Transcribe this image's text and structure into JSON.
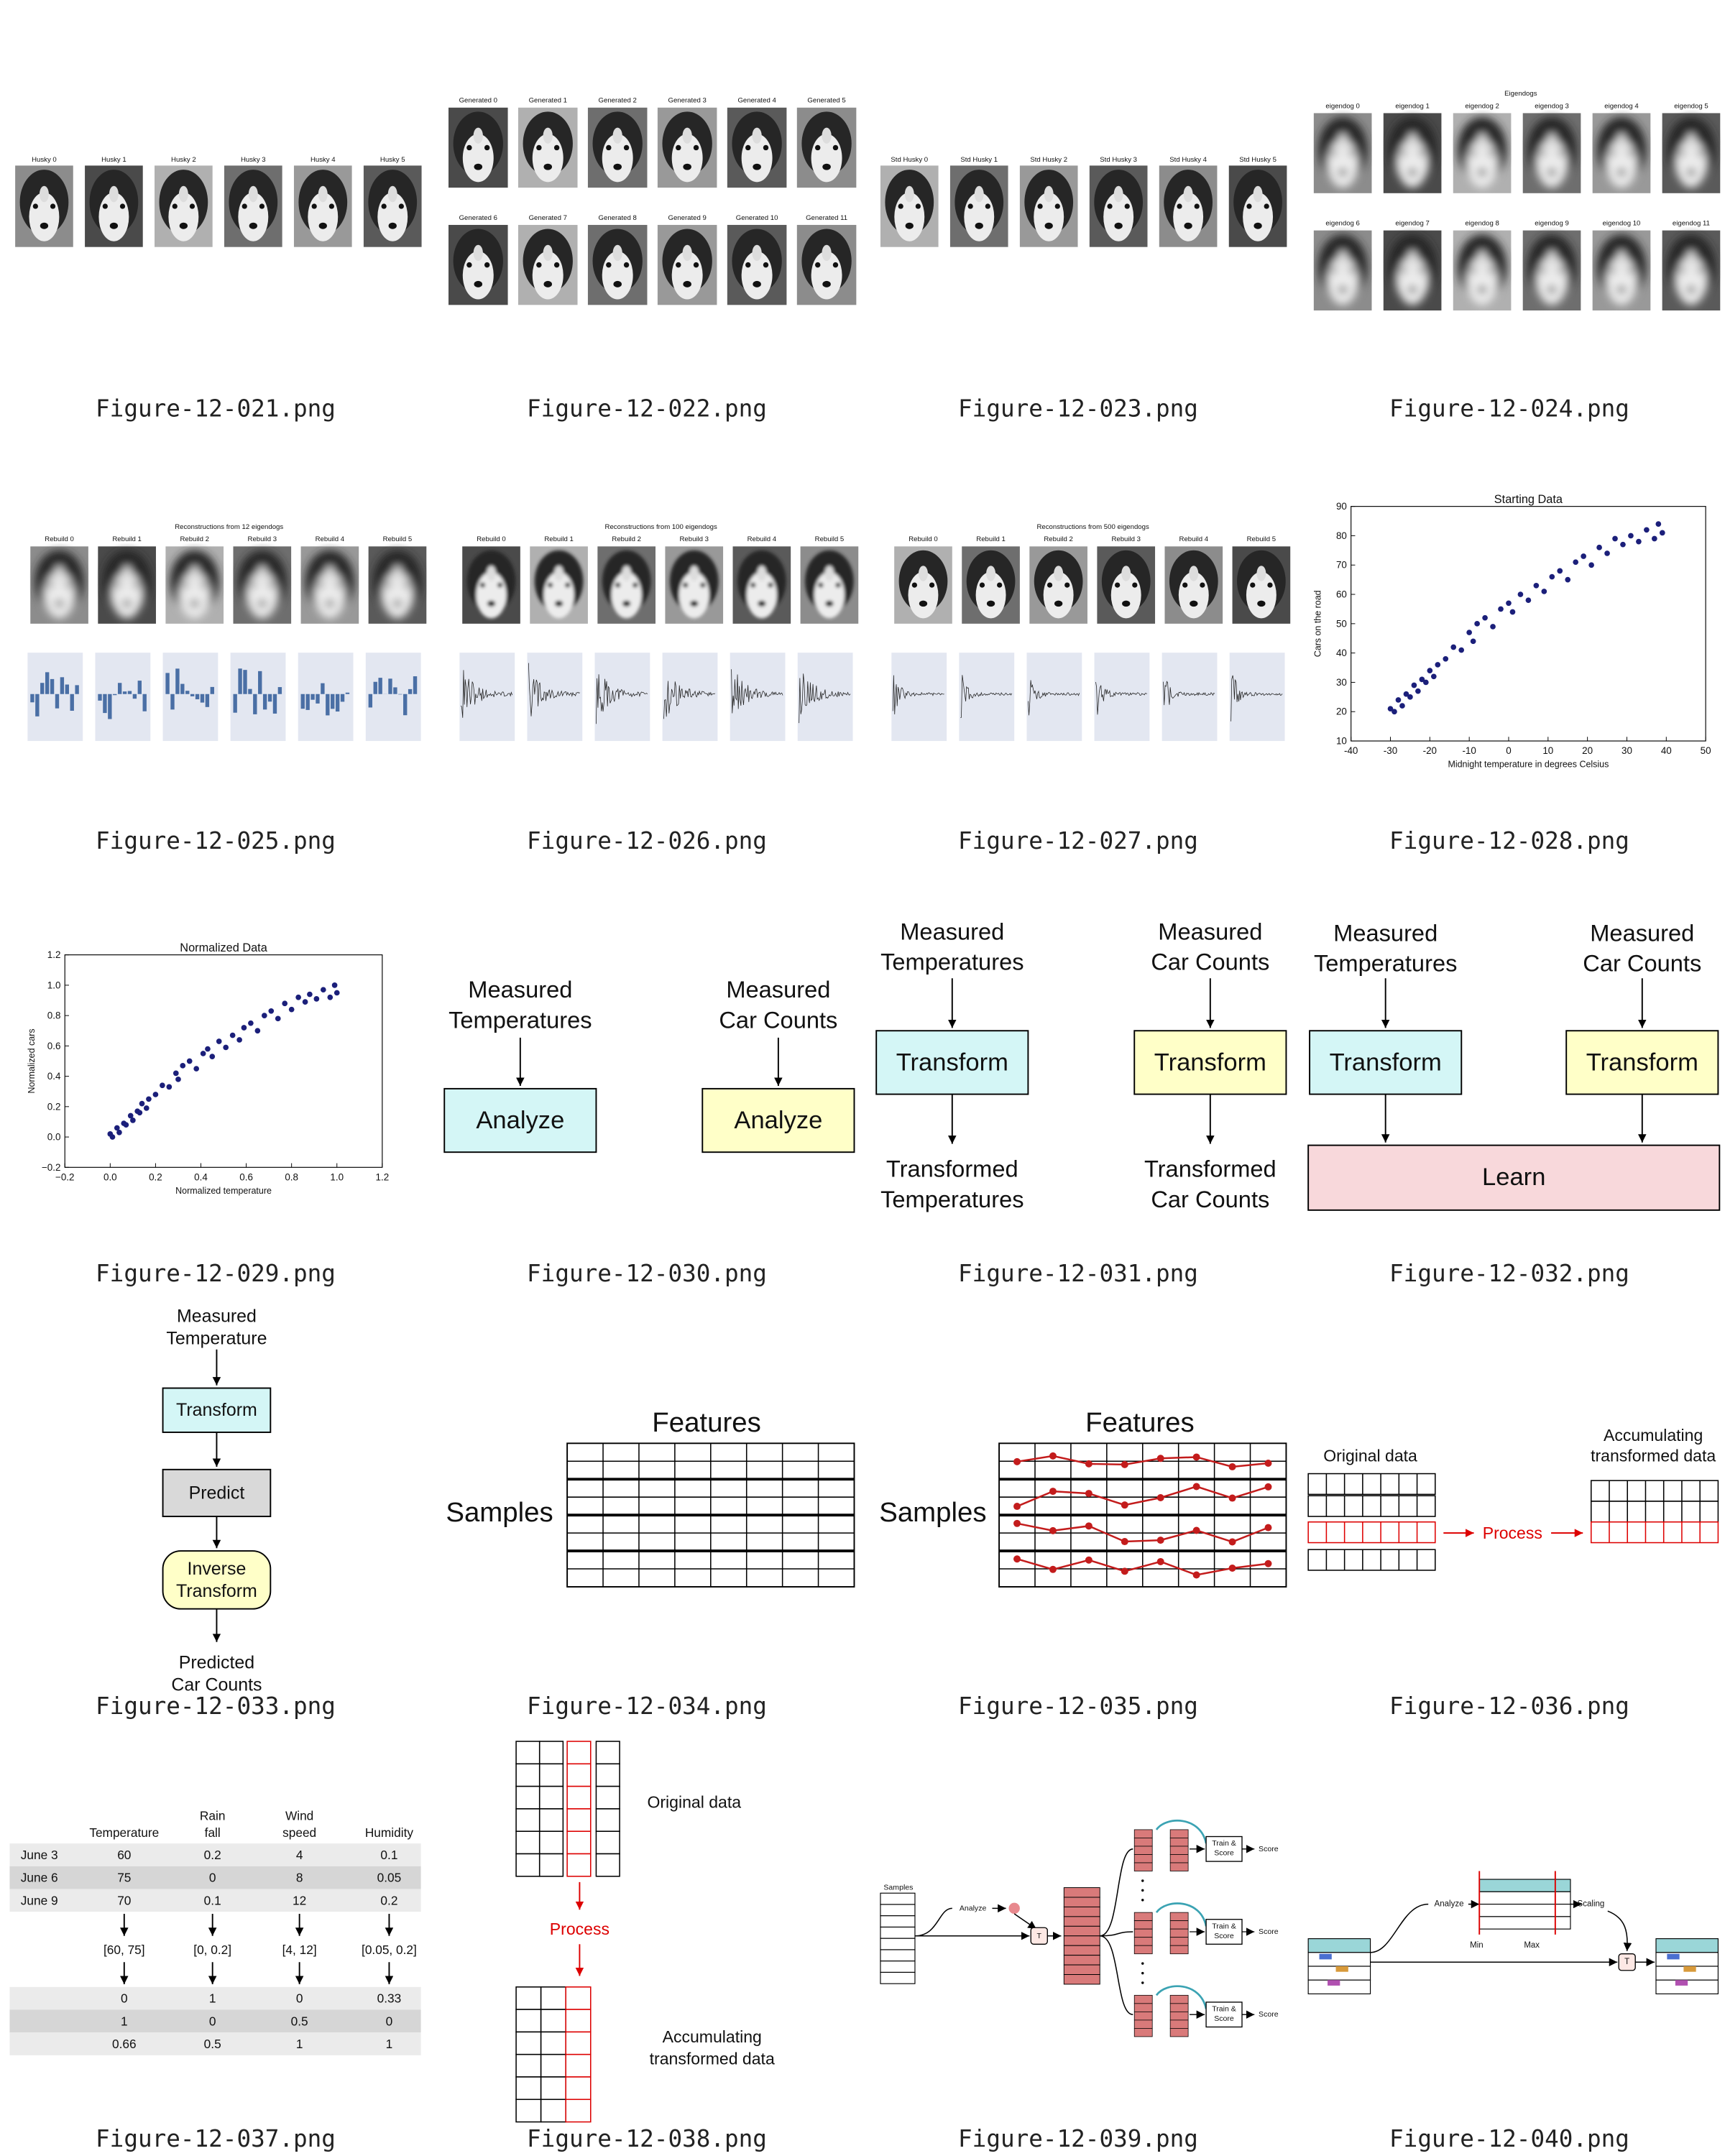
{
  "files": [
    {
      "caption": "Figure-12-021.png",
      "labels": [
        "Husky 0",
        "Husky 1",
        "Husky 2",
        "Husky 3",
        "Husky 4",
        "Husky 5"
      ]
    },
    {
      "caption": "Figure-12-022.png",
      "labels": [
        "Generated 0",
        "Generated 1",
        "Generated 2",
        "Generated 3",
        "Generated 4",
        "Generated 5",
        "Generated 6",
        "Generated 7",
        "Generated 8",
        "Generated 9",
        "Generated 10",
        "Generated 11"
      ]
    },
    {
      "caption": "Figure-12-023.png",
      "labels": [
        "Std Husky 0",
        "Std Husky 1",
        "Std Husky 2",
        "Std Husky 3",
        "Std Husky 4",
        "Std Husky 5"
      ]
    },
    {
      "caption": "Figure-12-024.png",
      "title": "Eigendogs",
      "labels": [
        "eigendog 0",
        "eigendog 1",
        "eigendog 2",
        "eigendog 3",
        "eigendog 4",
        "eigendog 5",
        "eigendog 6",
        "eigendog 7",
        "eigendog 8",
        "eigendog 9",
        "eigendog 10",
        "eigendog 11"
      ]
    },
    {
      "caption": "Figure-12-025.png",
      "title": "Reconstructions from 12 eigendogs",
      "labels": [
        "Rebuild 0",
        "Rebuild 1",
        "Rebuild 2",
        "Rebuild 3",
        "Rebuild 4",
        "Rebuild 5"
      ]
    },
    {
      "caption": "Figure-12-026.png",
      "title": "Reconstructions from 100 eigendogs",
      "labels": [
        "Rebuild 0",
        "Rebuild 1",
        "Rebuild 2",
        "Rebuild 3",
        "Rebuild 4",
        "Rebuild 5"
      ]
    },
    {
      "caption": "Figure-12-027.png",
      "title": "Reconstructions from 500 eigendogs",
      "labels": [
        "Rebuild 0",
        "Rebuild 1",
        "Rebuild 2",
        "Rebuild 3",
        "Rebuild 4",
        "Rebuild 5"
      ]
    },
    {
      "caption": "Figure-12-028.png",
      "chart_data": {
        "type": "scatter",
        "title": "Starting Data",
        "x_label": "Midnight temperature in degrees Celsius",
        "y_label": "Cars on the road",
        "color": "#1b1f7a",
        "x": [
          -30,
          -29,
          -28,
          -27,
          -26,
          -25,
          -24,
          -23,
          -22,
          -21,
          -20,
          -19,
          -18,
          -16,
          -14,
          -12,
          -10,
          -9,
          -8,
          -6,
          -4,
          -2,
          0,
          1,
          3,
          5,
          7,
          9,
          11,
          13,
          15,
          17,
          19,
          21,
          23,
          25,
          27,
          29,
          31,
          33,
          35,
          37,
          38,
          39
        ],
        "y": [
          21,
          20,
          24,
          22,
          26,
          25,
          29,
          27,
          31,
          30,
          34,
          32,
          36,
          38,
          42,
          41,
          47,
          44,
          50,
          52,
          49,
          55,
          57,
          54,
          60,
          58,
          63,
          61,
          66,
          68,
          65,
          71,
          73,
          70,
          76,
          74,
          79,
          77,
          80,
          78,
          82,
          79,
          84,
          81
        ],
        "xlim": [
          -40,
          50
        ],
        "xticks": [
          -40,
          -30,
          -20,
          -10,
          0,
          10,
          20,
          30,
          40,
          50
        ],
        "ylim": [
          10,
          90
        ],
        "yticks": [
          10,
          20,
          30,
          40,
          50,
          60,
          70,
          80,
          90
        ]
      }
    },
    {
      "caption": "Figure-12-029.png",
      "chart_data": {
        "type": "scatter",
        "title": "Normalized Data",
        "x_label": "Normalized temperature",
        "y_label": "Normalized cars",
        "color": "#1b1f7a",
        "x": [
          0,
          0.01,
          0.03,
          0.04,
          0.06,
          0.07,
          0.09,
          0.1,
          0.12,
          0.13,
          0.14,
          0.16,
          0.17,
          0.2,
          0.23,
          0.26,
          0.29,
          0.3,
          0.32,
          0.35,
          0.38,
          0.41,
          0.43,
          0.45,
          0.48,
          0.51,
          0.54,
          0.57,
          0.59,
          0.62,
          0.65,
          0.68,
          0.71,
          0.74,
          0.77,
          0.8,
          0.83,
          0.86,
          0.88,
          0.91,
          0.94,
          0.97,
          0.99,
          1.0
        ],
        "y": [
          0.02,
          0,
          0.06,
          0.03,
          0.09,
          0.08,
          0.14,
          0.11,
          0.17,
          0.16,
          0.22,
          0.19,
          0.25,
          0.28,
          0.34,
          0.33,
          0.42,
          0.38,
          0.47,
          0.5,
          0.45,
          0.55,
          0.58,
          0.53,
          0.63,
          0.59,
          0.67,
          0.64,
          0.72,
          0.75,
          0.7,
          0.8,
          0.83,
          0.78,
          0.88,
          0.84,
          0.92,
          0.89,
          0.94,
          0.91,
          0.97,
          0.92,
          1.0,
          0.95
        ],
        "xlim": [
          -0.2,
          1.2
        ],
        "xticks": [
          {
            "value": -0.2,
            "label": "−0.2"
          },
          {
            "value": 0,
            "label": "0.0"
          },
          0.2,
          0.4,
          0.6,
          0.8,
          {
            "value": 1,
            "label": "1.0"
          },
          1.2
        ],
        "ylim": [
          -0.2,
          1.2
        ],
        "yticks": [
          {
            "value": -0.2,
            "label": "−0.2"
          },
          {
            "value": 0,
            "label": "0.0"
          },
          0.2,
          0.4,
          0.6,
          0.8,
          {
            "value": 1,
            "label": "1.0"
          },
          1.2
        ]
      }
    },
    {
      "caption": "Figure-12-030.png",
      "sources": [
        [
          "Measured",
          "Temperatures"
        ],
        [
          "Measured",
          "Car Counts"
        ]
      ],
      "boxes": [
        "Analyze",
        "Analyze"
      ]
    },
    {
      "caption": "Figure-12-031.png",
      "sources": [
        [
          "Measured",
          "Temperatures"
        ],
        [
          "Measured",
          "Car Counts"
        ]
      ],
      "boxes": [
        "Transform",
        "Transform"
      ],
      "results": [
        [
          "Transformed",
          "Temperatures"
        ],
        [
          "Transformed",
          "Car Counts"
        ]
      ]
    },
    {
      "caption": "Figure-12-032.png",
      "sources": [
        [
          "Measured",
          "Temperatures"
        ],
        [
          "Measured",
          "Car Counts"
        ]
      ],
      "boxes": [
        "Transform",
        "Transform"
      ],
      "learn": "Learn"
    },
    {
      "caption": "Figure-12-033.png",
      "steps": [
        [
          "Measured",
          "Temperature"
        ],
        [
          "Transform"
        ],
        [
          "Predict"
        ],
        [
          "Inverse",
          "Transform"
        ],
        [
          "Predicted",
          "Car Counts"
        ]
      ]
    },
    {
      "caption": "Figure-12-034.png",
      "columns_label": "Features",
      "rows_label": "Samples"
    },
    {
      "caption": "Figure-12-035.png",
      "columns_label": "Features",
      "rows_label": "Samples"
    },
    {
      "caption": "Figure-12-036.png",
      "original": "Original data",
      "process": "Process",
      "result": [
        "Accumulating",
        "transformed data"
      ]
    },
    {
      "caption": "Figure-12-037.png",
      "headers": [
        [
          "Temperature"
        ],
        [
          "Rain",
          "fall"
        ],
        [
          "Wind",
          "speed"
        ],
        [
          "Humidity"
        ]
      ],
      "rows": [
        [
          "June 3",
          60,
          0.2,
          4,
          0.1
        ],
        [
          "June 6",
          75,
          0,
          8,
          0.05
        ],
        [
          "June 9",
          70,
          0.1,
          12,
          0.2
        ]
      ],
      "ranges": [
        "[60, 75]",
        "[0, 0.2]",
        "[4, 12]",
        "[0.05, 0.2]"
      ],
      "normalized": [
        [
          0,
          1,
          0,
          0.33
        ],
        [
          1,
          0,
          0.5,
          0
        ],
        [
          0.66,
          0.5,
          1,
          1
        ]
      ]
    },
    {
      "caption": "Figure-12-038.png",
      "original": "Original data",
      "process": "Process",
      "result": [
        "Accumulating",
        "transformed data"
      ]
    },
    {
      "caption": "Figure-12-039.png",
      "samples": "Samples",
      "analyze": "Analyze",
      "transform": "T",
      "train": [
        [
          "Train &",
          "Score"
        ],
        [
          "Train &",
          "Score"
        ],
        [
          "Train &",
          "Score"
        ]
      ],
      "score": [
        "Score",
        "Score",
        "Score"
      ]
    },
    {
      "caption": "Figure-12-040.png",
      "analyze": "Analyze",
      "scaling": "Scaling",
      "min": "Min",
      "max": "Max",
      "transform": "T"
    }
  ]
}
